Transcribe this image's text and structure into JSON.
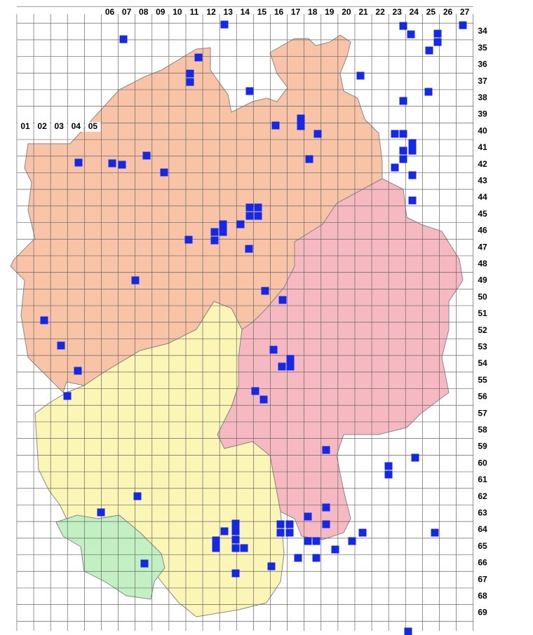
{
  "column_labels": [
    "01",
    "02",
    "03",
    "04",
    "05",
    "06",
    "07",
    "08",
    "09",
    "10",
    "11",
    "12",
    "13",
    "14",
    "15",
    "16",
    "17",
    "18",
    "19",
    "20",
    "21",
    "22",
    "23",
    "24",
    "25",
    "26",
    "27"
  ],
  "row_labels": [
    "34",
    "35",
    "36",
    "37",
    "38",
    "39",
    "40",
    "41",
    "42",
    "43",
    "44",
    "45",
    "46",
    "47",
    "48",
    "49",
    "50",
    "51",
    "52",
    "53",
    "54",
    "55",
    "56",
    "57",
    "58",
    "59",
    "60",
    "61",
    "62",
    "63",
    "64",
    "65",
    "66",
    "67",
    "68",
    "69"
  ]
}
